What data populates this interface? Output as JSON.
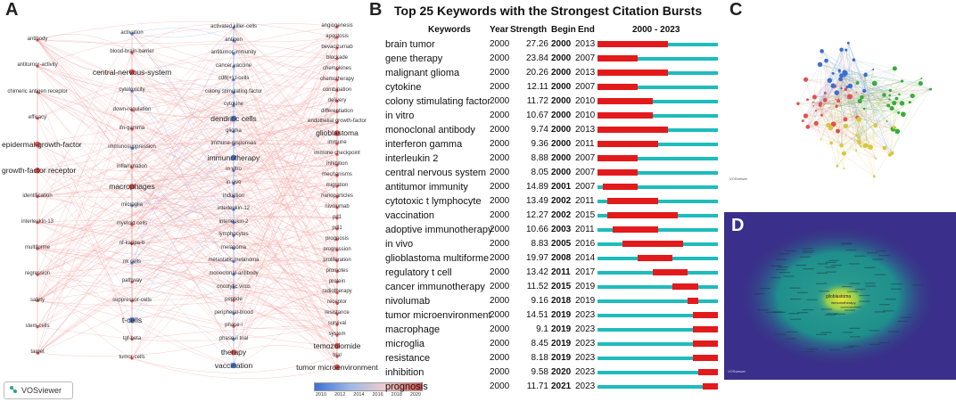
{
  "panel_labels": {
    "a": "A",
    "b": "B",
    "c": "C",
    "d": "D"
  },
  "panel_a": {
    "legend_ticks": [
      "2010",
      "2012",
      "2014",
      "2016",
      "2018",
      "2020"
    ],
    "branding": "VOSviewer",
    "left_col": [
      "antibody",
      "antitumor-activity",
      "chimeric antigen receptor",
      "efficacy",
      "epidermal-growth-factor",
      "growth-factor receptor",
      "identification",
      "interleukin-13",
      "multiforme",
      "regression",
      "safety",
      "stem-cells",
      "target"
    ],
    "mid_left_col": [
      "activation",
      "blood-brain-barrier",
      "central-nervous-system",
      "cytotoxicity",
      "down-regulation",
      "ifn-gamma",
      "immunosuppression",
      "inflammation",
      "macrophages",
      "microglia",
      "myeloid cells",
      "nf-kappa-b",
      "nk cells",
      "pathway",
      "suppressor-cells",
      "t-cells",
      "tgf-beta",
      "tumor-cells"
    ],
    "mid_col": [
      "activated killer-cells",
      "antigen",
      "antitumor immunity",
      "cancer vaccine",
      "cd8(+) t-cells",
      "colony stimulating factor",
      "cytokine",
      "dendritic cells",
      "glioma",
      "immune-responses",
      "immunotherapy",
      "in vitro",
      "in vivo",
      "induction",
      "interleukin-12",
      "interleukin-2",
      "lymphocytes",
      "melanoma",
      "metastatic melanoma",
      "monoclonal-antibody",
      "oncolytic virus",
      "peptide",
      "peripheral-blood",
      "phase-i",
      "phase-ii trial",
      "therapy",
      "vaccination"
    ],
    "right_col": [
      "angiogenesis",
      "apoptosis",
      "bevacizumab",
      "blockade",
      "chemokines",
      "chemotherapy",
      "combination",
      "delivery",
      "differentiation",
      "endothelial growth-factor",
      "glioblastoma",
      "immune",
      "immune checkpoint",
      "inhibition",
      "mechanisms",
      "migration",
      "nanoparticles",
      "nivolumab",
      "pd1",
      "pdl1",
      "prognosis",
      "progression",
      "proliferation",
      "promotes",
      "protein",
      "radiotherapy",
      "receptor",
      "resistance",
      "survival",
      "system",
      "temozolomide",
      "trial",
      "tumor microenvironment"
    ],
    "colors": {
      "blue": "#4a7bd8",
      "red": "#e0504a",
      "edge_blue": "#9db6ea",
      "edge_red": "#f0a3a0"
    }
  },
  "panel_b": {
    "title": "Top 25 Keywords with the Strongest Citation Bursts",
    "headers": {
      "keywords": "Keywords",
      "year": "Year",
      "strength": "Strength",
      "begin": "Begin",
      "end": "End",
      "range": "2000 - 2023"
    },
    "range_start": 2000,
    "range_end": 2023,
    "colors": {
      "burst": "#e31a1c",
      "track": "#1fbcbc"
    },
    "rows": [
      {
        "keyword": "brain tumor",
        "year": "2000",
        "strength": "27.26",
        "begin": "2000",
        "end": "2013"
      },
      {
        "keyword": "gene therapy",
        "year": "2000",
        "strength": "23.84",
        "begin": "2000",
        "end": "2007"
      },
      {
        "keyword": "malignant glioma",
        "year": "2000",
        "strength": "20.26",
        "begin": "2000",
        "end": "2013"
      },
      {
        "keyword": "cytokine",
        "year": "2000",
        "strength": "12.11",
        "begin": "2000",
        "end": "2007"
      },
      {
        "keyword": "colony stimulating factor",
        "year": "2000",
        "strength": "11.72",
        "begin": "2000",
        "end": "2010"
      },
      {
        "keyword": "in vitro",
        "year": "2000",
        "strength": "10.67",
        "begin": "2000",
        "end": "2010"
      },
      {
        "keyword": "monoclonal antibody",
        "year": "2000",
        "strength": "9.74",
        "begin": "2000",
        "end": "2013"
      },
      {
        "keyword": "interferon gamma",
        "year": "2000",
        "strength": "9.36",
        "begin": "2000",
        "end": "2011"
      },
      {
        "keyword": "interleukin 2",
        "year": "2000",
        "strength": "8.88",
        "begin": "2000",
        "end": "2007"
      },
      {
        "keyword": "central nervous system",
        "year": "2000",
        "strength": "8.05",
        "begin": "2000",
        "end": "2007"
      },
      {
        "keyword": "antitumor immunity",
        "year": "2000",
        "strength": "14.89",
        "begin": "2001",
        "end": "2007"
      },
      {
        "keyword": "cytotoxic t lymphocyte",
        "year": "2000",
        "strength": "13.49",
        "begin": "2002",
        "end": "2011"
      },
      {
        "keyword": "vaccination",
        "year": "2000",
        "strength": "12.27",
        "begin": "2002",
        "end": "2015"
      },
      {
        "keyword": "adoptive immunotherapy",
        "year": "2000",
        "strength": "10.66",
        "begin": "2003",
        "end": "2011"
      },
      {
        "keyword": "in vivo",
        "year": "2000",
        "strength": "8.83",
        "begin": "2005",
        "end": "2016"
      },
      {
        "keyword": "glioblastoma multiforme",
        "year": "2000",
        "strength": "19.97",
        "begin": "2008",
        "end": "2014"
      },
      {
        "keyword": "regulatory t cell",
        "year": "2000",
        "strength": "13.42",
        "begin": "2011",
        "end": "2017"
      },
      {
        "keyword": "cancer immunotherapy",
        "year": "2000",
        "strength": "11.52",
        "begin": "2015",
        "end": "2019"
      },
      {
        "keyword": "nivolumab",
        "year": "2000",
        "strength": "9.16",
        "begin": "2018",
        "end": "2019"
      },
      {
        "keyword": "tumor microenvironment",
        "year": "2000",
        "strength": "14.51",
        "begin": "2019",
        "end": "2023"
      },
      {
        "keyword": "macrophage",
        "year": "2000",
        "strength": "9.1",
        "begin": "2019",
        "end": "2023"
      },
      {
        "keyword": "microglia",
        "year": "2000",
        "strength": "8.45",
        "begin": "2019",
        "end": "2023"
      },
      {
        "keyword": "resistance",
        "year": "2000",
        "strength": "8.18",
        "begin": "2019",
        "end": "2023"
      },
      {
        "keyword": "inhibition",
        "year": "2000",
        "strength": "9.58",
        "begin": "2020",
        "end": "2023"
      },
      {
        "keyword": "prognosis",
        "year": "2000",
        "strength": "11.71",
        "begin": "2021",
        "end": "2023"
      }
    ]
  },
  "panel_c": {
    "branding": "VOSviewer",
    "colors": {
      "red": "#e05050",
      "green": "#3caa3c",
      "blue": "#3a6fd0",
      "yellow": "#d8c640"
    }
  },
  "panel_d": {
    "branding": "VOSviewer",
    "label_main": "glioblastoma",
    "label_sub": "immunotherapy",
    "colors": {
      "bg": "#3a2f8a",
      "mid": "#1f8f8c",
      "hot": "#e8e33a"
    }
  }
}
